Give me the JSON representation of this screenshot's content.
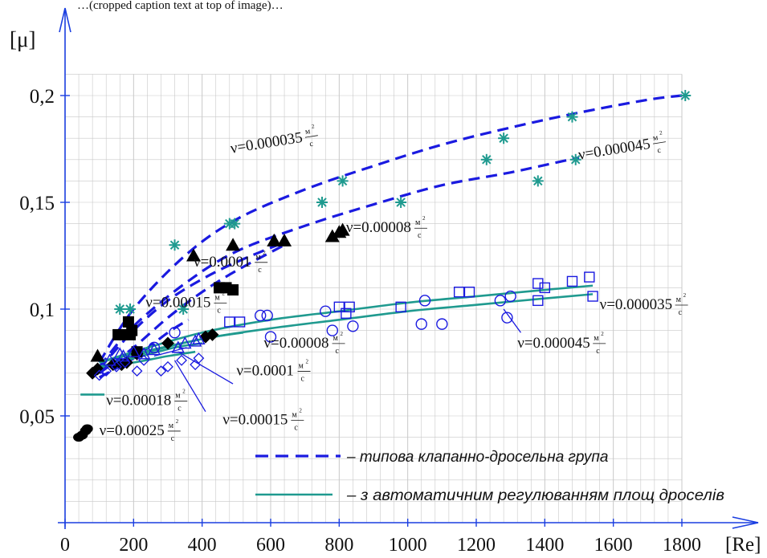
{
  "top_caption": "…(cropped caption text at top of image)…",
  "colors": {
    "blue": "#1a1ae0",
    "teal": "#1f9a8f",
    "black": "#000000",
    "grid": "#c8c8c8",
    "axis": "#1a3ee0"
  },
  "chart_data": {
    "type": "scatter",
    "xlabel": "[Re]",
    "ylabel": "[μ]",
    "xlim": [
      0,
      1880
    ],
    "ylim": [
      0,
      0.21
    ],
    "x_ticks": [
      0,
      200,
      400,
      600,
      800,
      1000,
      1200,
      1400,
      1600,
      1800
    ],
    "y_ticks": [
      0.05,
      0.1,
      0.15,
      0.2
    ],
    "y_tick_labels": [
      "0,05",
      "0,1",
      "0,15",
      "0,2"
    ],
    "grid": true,
    "legend_position": "bottom-right",
    "legend": [
      {
        "label": "– типова клапанно-дросельна група",
        "style": "dashed",
        "color": "#1a1ae0"
      },
      {
        "label": "– з автоматичним регулюванням площ дроселів",
        "style": "solid",
        "color": "#1f9a8f"
      }
    ],
    "curves": [
      {
        "group": "typical",
        "color": "#1a1ae0",
        "style": "dashed",
        "x": [
          100,
          200,
          350,
          500,
          700,
          900,
          1100,
          1300,
          1500,
          1700,
          1800
        ],
        "y": [
          0.075,
          0.1,
          0.125,
          0.142,
          0.156,
          0.167,
          0.177,
          0.185,
          0.192,
          0.198,
          0.2
        ]
      },
      {
        "group": "typical",
        "color": "#1a1ae0",
        "style": "dashed",
        "x": [
          100,
          200,
          350,
          500,
          700,
          900,
          1100,
          1300,
          1500
        ],
        "y": [
          0.073,
          0.092,
          0.112,
          0.127,
          0.139,
          0.149,
          0.158,
          0.164,
          0.171
        ]
      },
      {
        "group": "typical",
        "color": "#1a1ae0",
        "style": "dashed",
        "x": [
          100,
          200,
          300,
          400,
          500,
          650
        ],
        "y": [
          0.072,
          0.09,
          0.104,
          0.114,
          0.122,
          0.132
        ]
      },
      {
        "group": "typical",
        "color": "#1a1ae0",
        "style": "dashed",
        "x": [
          100,
          200,
          300,
          400,
          500,
          640
        ],
        "y": [
          0.07,
          0.082,
          0.096,
          0.108,
          0.118,
          0.13
        ]
      },
      {
        "group": "typical",
        "color": "#1a1ae0",
        "style": "dashed",
        "x": [
          100,
          200,
          300,
          360
        ],
        "y": [
          0.068,
          0.077,
          0.089,
          0.095
        ]
      },
      {
        "group": "auto",
        "color": "#1f9a8f",
        "style": "solid",
        "x": [
          100,
          200,
          400,
          600,
          800,
          1000,
          1200,
          1400,
          1540
        ],
        "y": [
          0.075,
          0.08,
          0.089,
          0.095,
          0.099,
          0.103,
          0.106,
          0.109,
          0.111
        ]
      },
      {
        "group": "auto",
        "color": "#1f9a8f",
        "style": "solid",
        "x": [
          100,
          200,
          400,
          600,
          800,
          1000,
          1200,
          1400,
          1540
        ],
        "y": [
          0.072,
          0.078,
          0.086,
          0.091,
          0.095,
          0.099,
          0.102,
          0.105,
          0.107
        ]
      },
      {
        "group": "auto",
        "color": "#1f9a8f",
        "style": "solid",
        "x": [
          100,
          200,
          400,
          520
        ],
        "y": [
          0.075,
          0.079,
          0.086,
          0.089
        ]
      },
      {
        "group": "auto",
        "color": "#1f9a8f",
        "style": "solid",
        "x": [
          100,
          200,
          320,
          400
        ],
        "y": [
          0.073,
          0.077,
          0.082,
          0.084
        ]
      },
      {
        "group": "auto",
        "color": "#1f9a8f",
        "style": "solid",
        "x": [
          100,
          200,
          300,
          380
        ],
        "y": [
          0.073,
          0.075,
          0.078,
          0.08
        ]
      },
      {
        "group": "auto",
        "color": "#1f9a8f",
        "style": "solid",
        "x": [
          45,
          115
        ],
        "y": [
          0.06,
          0.06
        ]
      }
    ],
    "series": [
      {
        "marker": "asterisk",
        "color": "#1f9a8f",
        "x": [
          160,
          190,
          320,
          345,
          480,
          495,
          750,
          810,
          980,
          1230,
          1280,
          1380,
          1480,
          1490,
          1810
        ],
        "y": [
          0.1,
          0.1,
          0.13,
          0.1,
          0.14,
          0.14,
          0.15,
          0.16,
          0.15,
          0.17,
          0.18,
          0.16,
          0.19,
          0.17,
          0.2
        ]
      },
      {
        "marker": "triangle-filled",
        "color": "#000000",
        "x": [
          95,
          375,
          490,
          610,
          640,
          780,
          800,
          810
        ],
        "y": [
          0.078,
          0.125,
          0.13,
          0.132,
          0.132,
          0.134,
          0.136,
          0.137
        ]
      },
      {
        "marker": "square-filled",
        "color": "#000000",
        "x": [
          155,
          170,
          185,
          190,
          195,
          210,
          450,
          470,
          490
        ],
        "y": [
          0.088,
          0.088,
          0.094,
          0.088,
          0.09,
          0.08,
          0.11,
          0.11,
          0.109
        ]
      },
      {
        "marker": "diamond-filled",
        "color": "#000000",
        "x": [
          80,
          95,
          140,
          165,
          180,
          210,
          300,
          410,
          430
        ],
        "y": [
          0.07,
          0.072,
          0.074,
          0.074,
          0.075,
          0.079,
          0.084,
          0.087,
          0.088
        ]
      },
      {
        "marker": "circle-filled",
        "color": "#000000",
        "x": [
          40,
          50,
          60,
          65
        ],
        "y": [
          0.04,
          0.041,
          0.043,
          0.044
        ]
      },
      {
        "marker": "square-open",
        "color": "#1a1ae0",
        "x": [
          480,
          510,
          800,
          820,
          830,
          980,
          1150,
          1180,
          1380,
          1380,
          1400,
          1480,
          1530,
          1540
        ],
        "y": [
          0.094,
          0.094,
          0.101,
          0.098,
          0.101,
          0.101,
          0.108,
          0.108,
          0.112,
          0.104,
          0.11,
          0.113,
          0.115,
          0.106
        ]
      },
      {
        "marker": "circle-open",
        "color": "#1a1ae0",
        "x": [
          260,
          320,
          570,
          590,
          600,
          760,
          780,
          840,
          1040,
          1050,
          1100,
          1270,
          1290,
          1300
        ],
        "y": [
          0.082,
          0.089,
          0.097,
          0.097,
          0.087,
          0.099,
          0.09,
          0.092,
          0.093,
          0.104,
          0.093,
          0.104,
          0.096,
          0.106
        ]
      },
      {
        "marker": "triangle-open",
        "color": "#1a1ae0",
        "x": [
          130,
          160,
          170,
          200,
          230,
          260,
          330,
          350,
          380,
          390
        ],
        "y": [
          0.076,
          0.079,
          0.078,
          0.08,
          0.079,
          0.081,
          0.082,
          0.084,
          0.085,
          0.086
        ]
      },
      {
        "marker": "diamond-open",
        "color": "#1a1ae0",
        "x": [
          100,
          120,
          150,
          175,
          210,
          230,
          280,
          300,
          340,
          380,
          390
        ],
        "y": [
          0.069,
          0.071,
          0.073,
          0.075,
          0.071,
          0.076,
          0.071,
          0.073,
          0.076,
          0.074,
          0.077
        ]
      }
    ],
    "annotations": [
      {
        "text": "ν=0.000035",
        "unit": true,
        "rotate": -9,
        "x": 485,
        "y": 0.173
      },
      {
        "text": "ν=0.000045",
        "unit": true,
        "rotate": -9,
        "x": 1500,
        "y": 0.17
      },
      {
        "text": "ν=0.00008",
        "unit": true,
        "rotate": 0,
        "x": 820,
        "y": 0.136
      },
      {
        "text": "ν=0.0001",
        "unit": true,
        "rotate": 0,
        "x": 375,
        "y": 0.12
      },
      {
        "text": "ν=0.00015",
        "unit": true,
        "rotate": 0,
        "x": 235,
        "y": 0.101
      },
      {
        "text": "ν=0.000035",
        "unit": true,
        "rotate": 0,
        "x": 1560,
        "y": 0.1
      },
      {
        "text": "ν=0.00008",
        "unit": true,
        "rotate": 0,
        "x": 580,
        "y": 0.082
      },
      {
        "text": "ν=0.000045",
        "unit": true,
        "rotate": 0,
        "x": 1320,
        "y": 0.082
      },
      {
        "text": "ν=0.0001",
        "unit": true,
        "rotate": 0,
        "x": 500,
        "y": 0.069
      },
      {
        "text": "ν=0.00018",
        "unit": true,
        "rotate": 0,
        "x": 120,
        "y": 0.055
      },
      {
        "text": "ν=0.00015",
        "unit": true,
        "rotate": 0,
        "x": 460,
        "y": 0.046
      },
      {
        "text": "ν=0.00025",
        "unit": true,
        "rotate": 0,
        "x": 100,
        "y": 0.041
      }
    ],
    "leaders": [
      {
        "x": [
          260,
          355
        ],
        "y": [
          0.078,
          0.082
        ]
      },
      {
        "x": [
          1280,
          1330
        ],
        "y": [
          0.1,
          0.089
        ]
      },
      {
        "x": [
          330,
          490
        ],
        "y": [
          0.08,
          0.065
        ]
      },
      {
        "x": [
          320,
          410
        ],
        "y": [
          0.076,
          0.052
        ]
      }
    ],
    "unit_num": "м",
    "unit_sup": "2",
    "unit_den": "с"
  }
}
